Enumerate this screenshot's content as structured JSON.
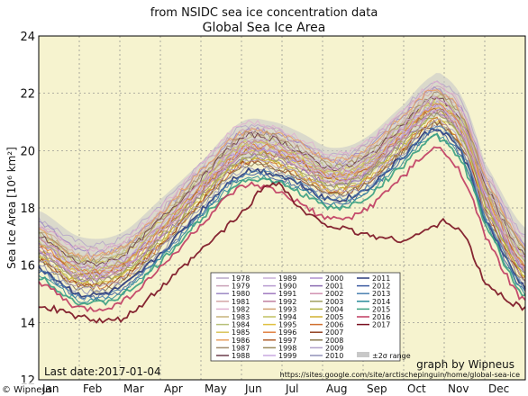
{
  "chart_data": {
    "type": "line",
    "subtitle": "from NSIDC sea ice concentration data",
    "title": "Global Sea Ice Area",
    "ylabel": "Sea Ice Area [10⁶ km²]",
    "ylim": [
      12,
      24
    ],
    "yticks": [
      12,
      14,
      16,
      18,
      20,
      22,
      24
    ],
    "x_ticks": [
      "Jan",
      "Feb",
      "Mar",
      "Apr",
      "May",
      "Jun",
      "Jul",
      "Aug",
      "Sep",
      "Oct",
      "Nov",
      "Dec"
    ],
    "x_unit_range": [
      0,
      12
    ],
    "grid": true,
    "legend_position": "bottom-center",
    "legend_extra": "±2σ range",
    "annotation_left": "Last date:2017-01-04",
    "annotation_right": "graph by Wipneus",
    "source_url": "https://sites.google.com/site/arctischepinguin/home/global-sea-ice",
    "watermark": "© Wipneus",
    "sigma_band": {
      "x": [
        0,
        1,
        2,
        3,
        4,
        5,
        5.8,
        6.5,
        7.2,
        8,
        9,
        9.7,
        10,
        10.5,
        11,
        12
      ],
      "upper": [
        17.9,
        17.0,
        17.1,
        18.3,
        19.6,
        21.0,
        21.0,
        20.6,
        20.1,
        20.4,
        21.6,
        22.6,
        22.6,
        21.7,
        19.6,
        17.3
      ],
      "lower": [
        16.8,
        15.7,
        15.9,
        17.2,
        18.6,
        19.6,
        19.8,
        19.4,
        18.9,
        19.0,
        20.3,
        21.1,
        21.1,
        20.1,
        18.1,
        15.7
      ]
    },
    "series": [
      {
        "name": "1978",
        "color": "#b8a9c9",
        "values": [
          17.6,
          16.8,
          16.9,
          18.1,
          19.5,
          20.8,
          20.8,
          20.3,
          19.8,
          20.2,
          21.4,
          22.4,
          22.3,
          21.5,
          19.4,
          17.0
        ]
      },
      {
        "name": "1979",
        "color": "#c9a0b8",
        "values": [
          17.4,
          16.6,
          16.7,
          17.9,
          19.4,
          20.7,
          20.7,
          20.2,
          19.7,
          20.1,
          21.3,
          22.2,
          22.2,
          21.3,
          19.2,
          16.8
        ]
      },
      {
        "name": "1980",
        "color": "#9c88c4",
        "values": [
          17.5,
          16.5,
          16.6,
          17.8,
          19.3,
          20.6,
          20.6,
          20.2,
          19.6,
          20.0,
          21.2,
          22.1,
          22.0,
          21.2,
          19.1,
          16.7
        ]
      },
      {
        "name": "1981",
        "color": "#d4a6a6",
        "values": [
          17.3,
          16.4,
          16.5,
          17.8,
          19.2,
          20.5,
          20.5,
          20.1,
          19.6,
          19.9,
          21.1,
          22.0,
          21.9,
          21.1,
          19.0,
          16.6
        ]
      },
      {
        "name": "1982",
        "color": "#e0b0d0",
        "values": [
          17.4,
          16.6,
          16.8,
          18.0,
          19.5,
          20.9,
          20.8,
          20.4,
          19.9,
          20.2,
          21.4,
          22.3,
          22.2,
          21.3,
          19.3,
          16.9
        ]
      },
      {
        "name": "1983",
        "color": "#c7b37a",
        "values": [
          17.2,
          16.3,
          16.5,
          17.7,
          19.1,
          20.4,
          20.4,
          20.0,
          19.5,
          19.8,
          21.0,
          21.9,
          21.8,
          21.0,
          18.9,
          16.5
        ]
      },
      {
        "name": "1984",
        "color": "#b7c07a",
        "values": [
          17.1,
          16.2,
          16.4,
          17.6,
          19.0,
          20.3,
          20.3,
          19.9,
          19.4,
          19.7,
          20.9,
          21.8,
          21.7,
          20.9,
          18.8,
          16.4
        ]
      },
      {
        "name": "1985",
        "color": "#d9c45a",
        "values": [
          17.0,
          16.1,
          16.3,
          17.5,
          18.9,
          20.2,
          20.2,
          19.8,
          19.3,
          19.6,
          20.8,
          21.7,
          21.6,
          20.8,
          18.7,
          16.3
        ]
      },
      {
        "name": "1986",
        "color": "#e8a060",
        "values": [
          17.2,
          16.3,
          16.6,
          17.8,
          19.3,
          20.6,
          20.6,
          20.2,
          19.7,
          20.0,
          21.2,
          22.1,
          22.0,
          21.1,
          19.1,
          16.6
        ]
      },
      {
        "name": "1987",
        "color": "#a08a6a",
        "values": [
          17.1,
          16.2,
          16.4,
          17.6,
          19.1,
          20.5,
          20.5,
          20.0,
          19.5,
          19.8,
          21.0,
          21.9,
          21.9,
          21.0,
          18.9,
          16.5
        ]
      },
      {
        "name": "1988",
        "color": "#6a3a4a",
        "values": [
          17.0,
          16.1,
          16.3,
          17.6,
          19.0,
          20.4,
          20.4,
          19.9,
          19.4,
          19.7,
          20.9,
          21.8,
          21.7,
          20.8,
          18.8,
          16.3
        ]
      },
      {
        "name": "1989",
        "color": "#c9b0d8",
        "values": [
          16.9,
          16.0,
          16.2,
          17.4,
          18.9,
          20.3,
          20.3,
          19.9,
          19.4,
          19.7,
          20.9,
          21.8,
          21.7,
          20.9,
          18.8,
          16.3
        ]
      },
      {
        "name": "1990",
        "color": "#b89ad0",
        "values": [
          16.8,
          15.9,
          16.1,
          17.3,
          18.8,
          20.1,
          20.1,
          19.7,
          19.2,
          19.5,
          20.7,
          21.6,
          21.5,
          20.7,
          18.6,
          16.1
        ]
      },
      {
        "name": "1991",
        "color": "#a07ac0",
        "values": [
          16.8,
          15.8,
          16.0,
          17.2,
          18.7,
          20.0,
          20.0,
          19.6,
          19.1,
          19.4,
          20.6,
          21.5,
          21.4,
          20.6,
          18.5,
          16.0
        ]
      },
      {
        "name": "1992",
        "color": "#c080a0",
        "values": [
          16.9,
          16.0,
          16.1,
          17.4,
          18.9,
          20.2,
          20.2,
          19.8,
          19.3,
          19.6,
          20.8,
          21.7,
          21.6,
          20.7,
          18.6,
          16.2
        ]
      },
      {
        "name": "1993",
        "color": "#d0a070",
        "values": [
          16.7,
          15.8,
          16.0,
          17.2,
          18.7,
          20.0,
          20.0,
          19.6,
          19.1,
          19.4,
          20.6,
          21.5,
          21.4,
          20.6,
          18.5,
          16.0
        ]
      },
      {
        "name": "1994",
        "color": "#c0c060",
        "values": [
          16.8,
          15.9,
          16.1,
          17.3,
          18.8,
          20.1,
          20.1,
          19.7,
          19.2,
          19.5,
          20.7,
          21.6,
          21.5,
          20.7,
          18.6,
          16.1
        ]
      },
      {
        "name": "1995",
        "color": "#e0c040",
        "values": [
          16.6,
          15.7,
          15.9,
          17.1,
          18.6,
          19.9,
          19.9,
          19.5,
          19.0,
          19.3,
          20.5,
          21.4,
          21.3,
          20.5,
          18.4,
          15.9
        ]
      },
      {
        "name": "1996",
        "color": "#e08040",
        "values": [
          16.7,
          15.8,
          16.0,
          17.2,
          18.7,
          20.0,
          20.1,
          19.6,
          19.1,
          19.4,
          20.6,
          21.5,
          21.5,
          20.6,
          18.5,
          16.0
        ]
      },
      {
        "name": "1997",
        "color": "#b06030",
        "values": [
          16.6,
          15.7,
          15.9,
          17.1,
          18.6,
          19.9,
          19.9,
          19.5,
          19.0,
          19.3,
          20.5,
          21.4,
          21.3,
          20.4,
          18.3,
          15.9
        ]
      },
      {
        "name": "1998",
        "color": "#9a8a5a",
        "values": [
          16.5,
          15.6,
          15.8,
          17.0,
          18.5,
          19.8,
          19.8,
          19.4,
          18.9,
          19.2,
          20.4,
          21.3,
          21.2,
          20.3,
          18.3,
          15.8
        ]
      },
      {
        "name": "1999",
        "color": "#c8a8e0",
        "values": [
          16.6,
          15.7,
          15.9,
          17.2,
          18.7,
          20.0,
          20.0,
          19.6,
          19.1,
          19.4,
          20.6,
          21.5,
          21.4,
          20.5,
          18.4,
          15.9
        ]
      },
      {
        "name": "2000",
        "color": "#b090d0",
        "values": [
          16.5,
          15.6,
          15.8,
          17.0,
          18.5,
          19.9,
          19.9,
          19.4,
          18.9,
          19.2,
          20.5,
          21.4,
          21.3,
          20.4,
          18.3,
          15.8
        ]
      },
      {
        "name": "2001",
        "color": "#8a6ab0",
        "values": [
          16.4,
          15.5,
          15.7,
          16.9,
          18.4,
          19.7,
          19.7,
          19.3,
          18.8,
          19.1,
          20.3,
          21.2,
          21.1,
          20.3,
          18.2,
          15.7
        ]
      },
      {
        "name": "2002",
        "color": "#d090b0",
        "values": [
          16.5,
          15.6,
          15.8,
          17.0,
          18.5,
          19.8,
          19.8,
          19.4,
          18.9,
          19.2,
          20.4,
          21.3,
          21.2,
          20.4,
          18.3,
          15.8
        ]
      },
      {
        "name": "2003",
        "color": "#a0a060",
        "values": [
          16.4,
          15.5,
          15.7,
          16.9,
          18.4,
          19.7,
          19.7,
          19.3,
          18.8,
          19.1,
          20.3,
          21.2,
          21.1,
          20.2,
          18.1,
          15.7
        ]
      },
      {
        "name": "2004",
        "color": "#b0b040",
        "values": [
          16.3,
          15.4,
          15.6,
          16.8,
          18.3,
          19.6,
          19.6,
          19.2,
          18.7,
          19.0,
          20.2,
          21.1,
          21.0,
          20.2,
          18.1,
          15.6
        ]
      },
      {
        "name": "2005",
        "color": "#d0b030",
        "values": [
          16.3,
          15.4,
          15.6,
          16.8,
          18.3,
          19.6,
          19.6,
          19.1,
          18.6,
          18.9,
          20.1,
          21.0,
          20.9,
          20.1,
          18.0,
          15.6
        ]
      },
      {
        "name": "2006",
        "color": "#d07030",
        "values": [
          16.2,
          15.3,
          15.5,
          16.7,
          18.2,
          19.5,
          19.5,
          19.1,
          18.6,
          18.9,
          20.1,
          21.0,
          20.9,
          20.0,
          17.9,
          15.5
        ]
      },
      {
        "name": "2007",
        "color": "#904020",
        "values": [
          16.2,
          15.3,
          15.5,
          16.7,
          18.2,
          19.5,
          19.4,
          19.0,
          18.5,
          18.8,
          20.0,
          20.9,
          20.8,
          20.0,
          17.9,
          15.5
        ]
      },
      {
        "name": "2008",
        "color": "#8a7a50",
        "values": [
          16.1,
          15.2,
          15.4,
          16.6,
          18.1,
          19.4,
          19.4,
          19.0,
          18.5,
          18.8,
          20.0,
          20.9,
          20.8,
          19.9,
          17.8,
          15.4
        ]
      },
      {
        "name": "2009",
        "color": "#b0a0c8",
        "values": [
          16.2,
          15.3,
          15.5,
          16.7,
          18.2,
          19.5,
          19.5,
          19.1,
          18.6,
          18.9,
          20.1,
          21.0,
          20.9,
          20.0,
          17.9,
          15.5
        ]
      },
      {
        "name": "2010",
        "color": "#9090b8",
        "values": [
          16.0,
          15.1,
          15.3,
          16.5,
          18.0,
          19.3,
          19.3,
          18.9,
          18.4,
          18.7,
          19.9,
          20.8,
          20.7,
          19.8,
          17.7,
          15.3
        ]
      },
      {
        "name": "2011",
        "color": "#2a3a7a",
        "values": [
          15.9,
          15.0,
          15.2,
          16.4,
          17.9,
          19.2,
          19.2,
          18.8,
          18.3,
          18.6,
          19.8,
          20.7,
          20.6,
          19.7,
          17.6,
          15.2
        ]
      },
      {
        "name": "2012",
        "color": "#3a5aa0",
        "values": [
          15.8,
          14.9,
          15.1,
          16.3,
          17.8,
          19.1,
          19.1,
          18.7,
          18.2,
          18.5,
          19.7,
          20.6,
          20.5,
          19.6,
          17.6,
          15.1
        ]
      },
      {
        "name": "2013",
        "color": "#4a80b0",
        "values": [
          15.8,
          14.9,
          15.1,
          16.3,
          17.8,
          19.1,
          19.2,
          18.8,
          18.3,
          18.6,
          19.8,
          20.7,
          20.7,
          19.8,
          17.7,
          15.2
        ]
      },
      {
        "name": "2014",
        "color": "#2a8a9a",
        "values": [
          15.7,
          14.8,
          15.0,
          16.2,
          17.7,
          19.0,
          19.0,
          18.6,
          18.1,
          18.4,
          19.6,
          20.5,
          20.4,
          19.5,
          17.5,
          15.0
        ]
      },
      {
        "name": "2015",
        "color": "#3aa080",
        "values": [
          15.6,
          14.7,
          14.9,
          16.1,
          17.6,
          18.9,
          18.9,
          18.5,
          18.0,
          18.3,
          19.5,
          20.4,
          20.3,
          19.4,
          17.4,
          14.9
        ]
      },
      {
        "name": "2016",
        "color": "#c03a60",
        "values": [
          15.4,
          14.5,
          14.7,
          15.9,
          17.4,
          18.7,
          18.6,
          18.1,
          17.6,
          17.9,
          19.1,
          20.0,
          19.9,
          19.0,
          17.0,
          14.7
        ]
      },
      {
        "name": "2017",
        "color": "#7a1020",
        "values": [
          14.6,
          14.2,
          14.1,
          15.2,
          16.5,
          17.8,
          18.9,
          17.9,
          17.4,
          17.1,
          16.9,
          17.3,
          17.5,
          17.0,
          15.4,
          14.5
        ]
      }
    ]
  }
}
